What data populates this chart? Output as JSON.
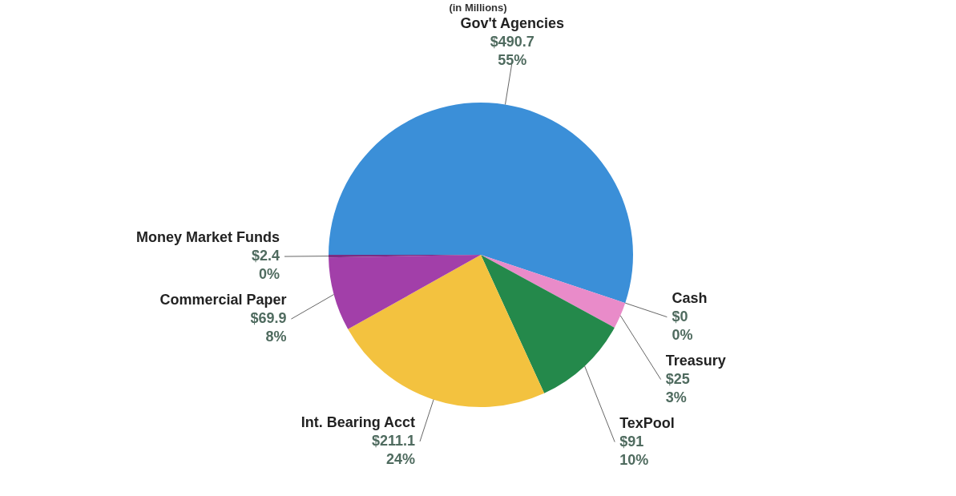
{
  "chart_data": {
    "type": "pie",
    "subtitle": "(in Millions)",
    "categories": [
      "Gov't Agencies",
      "Cash",
      "Treasury",
      "TexPool",
      "Int. Bearing Acct",
      "Commercial Paper",
      "Money Market Funds"
    ],
    "values": [
      490.7,
      0,
      25,
      91,
      211.1,
      69.9,
      2.4
    ],
    "colors": [
      "#3b8fd8",
      "#c25aa8",
      "#e98bc9",
      "#24894b",
      "#f3c23f",
      "#a23fa9",
      "#7b2d82"
    ],
    "value_labels": [
      "$490.7\n55%",
      "$0\n0%",
      "$25\n3%",
      "$91\n10%",
      "$211.1\n24%",
      "$69.9\n8%",
      "$2.4\n0%"
    ]
  }
}
